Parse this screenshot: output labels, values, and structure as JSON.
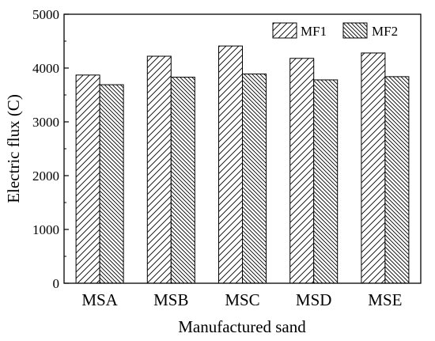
{
  "chart_data": {
    "type": "bar",
    "title": "",
    "xlabel": "Manufactured sand",
    "ylabel": "Electric flux (C)",
    "ylim": [
      0,
      5000
    ],
    "yticks": [
      0,
      1000,
      2000,
      3000,
      4000,
      5000
    ],
    "categories": [
      "MSA",
      "MSB",
      "MSC",
      "MSD",
      "MSE"
    ],
    "series": [
      {
        "name": "MF1",
        "values": [
          3870,
          4220,
          4410,
          4180,
          4280
        ],
        "pattern": "hatch-forward"
      },
      {
        "name": "MF2",
        "values": [
          3690,
          3830,
          3890,
          3780,
          3840
        ],
        "pattern": "hatch-backward"
      }
    ],
    "legend": "top-right",
    "grid": false
  }
}
